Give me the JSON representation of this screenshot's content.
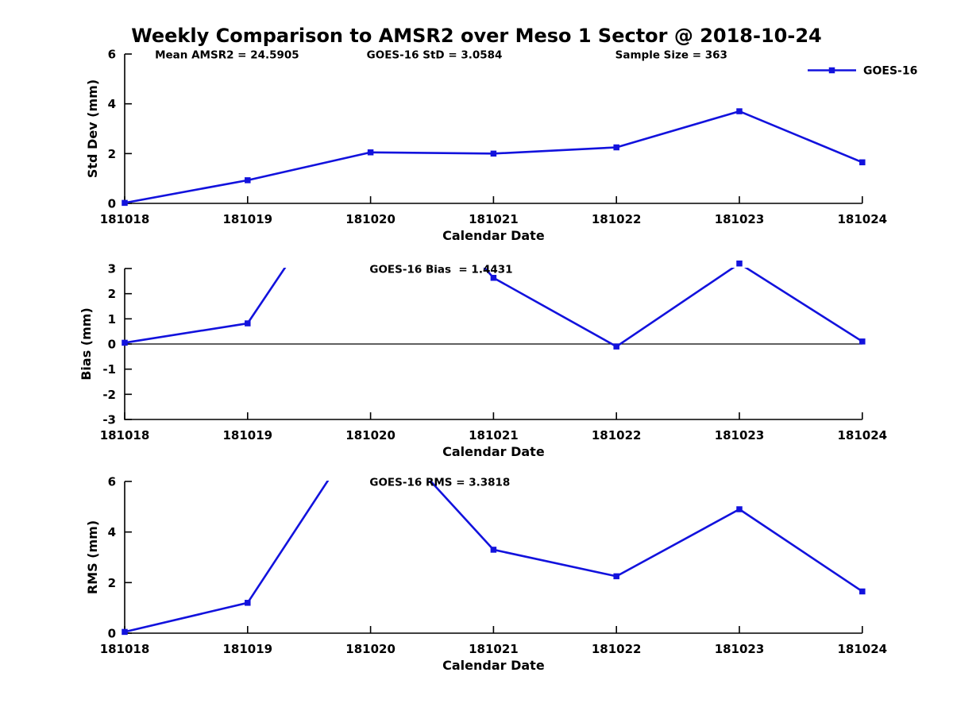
{
  "title": "Weekly Comparison to AMSR2 over Meso 1 Sector @ 2018-10-24",
  "colors": {
    "series_line": "#1212dd",
    "axis": "#000000",
    "text": "#000000",
    "background": "#ffffff"
  },
  "legend": {
    "label": "GOES-16",
    "position": "top-right-first-panel"
  },
  "chart_data": [
    {
      "type": "line",
      "panel": "std-dev",
      "ylabel": "Std Dev (mm)",
      "xlabel": "Calendar Date",
      "categories": [
        "181018",
        "181019",
        "181020",
        "181021",
        "181022",
        "181023",
        "181024"
      ],
      "series": [
        {
          "name": "GOES-16",
          "values": [
            0.02,
            0.93,
            2.05,
            2.0,
            2.25,
            3.7,
            1.65
          ]
        }
      ],
      "ylim": [
        0,
        6
      ],
      "yticks": [
        0,
        2,
        4,
        6
      ],
      "grid": false,
      "zero_line": false,
      "annotations": [
        {
          "text": "Mean AMSR2 = 24.5905",
          "xfrac": 0.041
        },
        {
          "text": "GOES-16 StD = 3.0584",
          "xfrac": 0.328
        },
        {
          "text": "Sample Size = 363",
          "xfrac": 0.665
        }
      ],
      "show_legend": true
    },
    {
      "type": "line",
      "panel": "bias",
      "ylabel": "Bias (mm)",
      "xlabel": "Calendar Date",
      "categories": [
        "181018",
        "181019",
        "181020",
        "181021",
        "181022",
        "181023",
        "181024"
      ],
      "series": [
        {
          "name": "GOES-16",
          "values": [
            0.05,
            0.82,
            8.1,
            2.63,
            -0.1,
            3.2,
            0.1
          ]
        }
      ],
      "offscale_clipped_categories": [
        "181020",
        "181023"
      ],
      "ylim": [
        -3,
        3
      ],
      "yticks": [
        -3,
        -2,
        -1,
        0,
        1,
        2,
        3
      ],
      "grid": false,
      "zero_line": true,
      "annotations": [
        {
          "text": "GOES-16 Bias  = 1.4431",
          "xfrac": 0.332
        }
      ],
      "show_legend": false
    },
    {
      "type": "line",
      "panel": "rms",
      "ylabel": "RMS (mm)",
      "xlabel": "Calendar Date",
      "categories": [
        "181018",
        "181019",
        "181020",
        "181021",
        "181022",
        "181023",
        "181024"
      ],
      "series": [
        {
          "name": "GOES-16",
          "values": [
            0.05,
            1.2,
            8.6,
            3.3,
            2.25,
            4.9,
            1.65
          ]
        }
      ],
      "offscale_clipped_categories": [
        "181020"
      ],
      "ylim": [
        0,
        6
      ],
      "yticks": [
        0,
        2,
        4,
        6
      ],
      "grid": false,
      "zero_line": false,
      "annotations": [
        {
          "text": "GOES-16 RMS = 3.3818",
          "xfrac": 0.332
        }
      ],
      "show_legend": false
    }
  ]
}
